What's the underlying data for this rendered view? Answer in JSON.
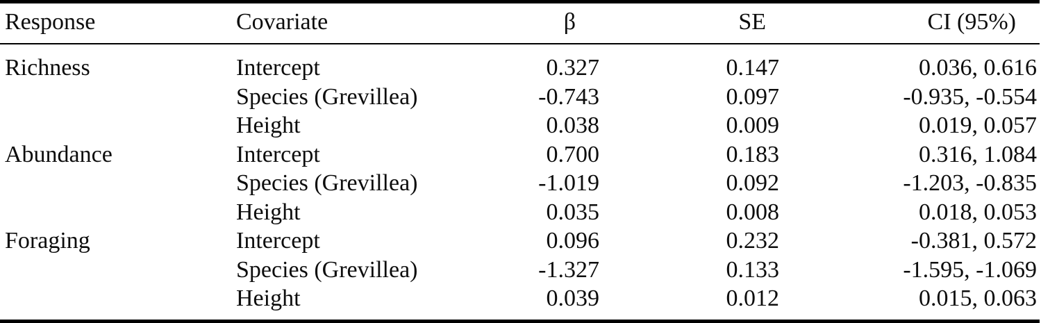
{
  "colors": {
    "background": "#ffffff",
    "text": "#0d0d0d",
    "rule": "#000000"
  },
  "table": {
    "columns": [
      "Response",
      "Covariate",
      "β",
      "SE",
      "CI (95%)"
    ],
    "rows": [
      {
        "response": "Richness",
        "covariate": "Intercept",
        "beta": "0.327",
        "se": "0.147",
        "ci": "0.036, 0.616"
      },
      {
        "response": "",
        "covariate": "Species (Grevillea)",
        "beta": "-0.743",
        "se": "0.097",
        "ci": "-0.935, -0.554"
      },
      {
        "response": "",
        "covariate": "Height",
        "beta": "0.038",
        "se": "0.009",
        "ci": "0.019, 0.057"
      },
      {
        "response": "Abundance",
        "covariate": "Intercept",
        "beta": "0.700",
        "se": "0.183",
        "ci": "0.316, 1.084"
      },
      {
        "response": "",
        "covariate": "Species (Grevillea)",
        "beta": "-1.019",
        "se": "0.092",
        "ci": "-1.203, -0.835"
      },
      {
        "response": "",
        "covariate": "Height",
        "beta": "0.035",
        "se": "0.008",
        "ci": "0.018, 0.053"
      },
      {
        "response": "Foraging",
        "covariate": "Intercept",
        "beta": "0.096",
        "se": "0.232",
        "ci": "-0.381, 0.572"
      },
      {
        "response": "",
        "covariate": "Species (Grevillea)",
        "beta": "-1.327",
        "se": "0.133",
        "ci": "-1.595, -1.069"
      },
      {
        "response": "",
        "covariate": "Height",
        "beta": "0.039",
        "se": "0.012",
        "ci": "0.015, 0.063"
      }
    ]
  }
}
